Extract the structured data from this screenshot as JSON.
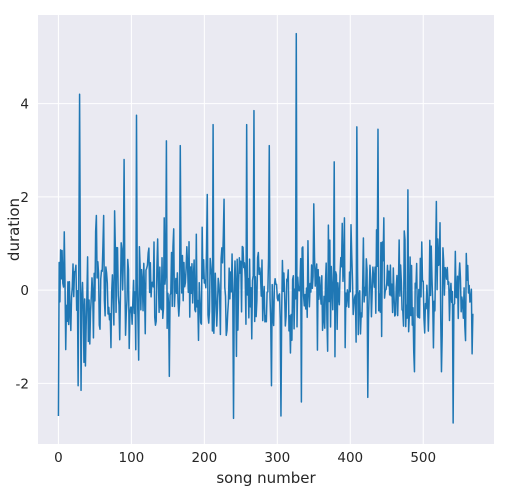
{
  "chart_data": {
    "type": "line",
    "title": "",
    "xlabel": "song number",
    "ylabel": "duration",
    "xlim": [
      -28,
      597
    ],
    "ylim": [
      -3.3,
      5.9
    ],
    "xticks": [
      0,
      100,
      200,
      300,
      400,
      500
    ],
    "yticks": [
      -2,
      0,
      2,
      4
    ],
    "xtick_labels": [
      "0",
      "100",
      "200",
      "300",
      "400",
      "500"
    ],
    "ytick_labels": [
      "-2",
      "0",
      "2",
      "4"
    ],
    "grid": true,
    "legend": "none",
    "colors": {
      "background": "#eaeaf2",
      "grid": "#ffffff",
      "line": "#1f77b4",
      "text": "#262626"
    },
    "series": [
      {
        "n_points": 569,
        "y_range": [
          -2.85,
          5.5
        ],
        "peaks": [
          {
            "x": 0,
            "y": -2.7
          },
          {
            "x": 5,
            "y": 0.85
          },
          {
            "x": 8,
            "y": 1.25
          },
          {
            "x": 27,
            "y": -2.05
          },
          {
            "x": 29,
            "y": 4.2
          },
          {
            "x": 31,
            "y": -2.15
          },
          {
            "x": 35,
            "y": -1.55
          },
          {
            "x": 52,
            "y": 1.6
          },
          {
            "x": 62,
            "y": 1.6
          },
          {
            "x": 77,
            "y": 1.7
          },
          {
            "x": 90,
            "y": 2.8
          },
          {
            "x": 107,
            "y": 3.75
          },
          {
            "x": 110,
            "y": -1.5
          },
          {
            "x": 148,
            "y": 3.2
          },
          {
            "x": 152,
            "y": -1.85
          },
          {
            "x": 167,
            "y": 3.1
          },
          {
            "x": 204,
            "y": 2.05
          },
          {
            "x": 212,
            "y": 3.55
          },
          {
            "x": 227,
            "y": 1.95
          },
          {
            "x": 240,
            "y": -2.75
          },
          {
            "x": 258,
            "y": 3.55
          },
          {
            "x": 268,
            "y": 3.85
          },
          {
            "x": 289,
            "y": 3.1
          },
          {
            "x": 292,
            "y": -2.05
          },
          {
            "x": 305,
            "y": -2.7
          },
          {
            "x": 326,
            "y": 5.5
          },
          {
            "x": 333,
            "y": -2.4
          },
          {
            "x": 350,
            "y": 1.85
          },
          {
            "x": 378,
            "y": 2.75
          },
          {
            "x": 409,
            "y": 3.5
          },
          {
            "x": 424,
            "y": -2.3
          },
          {
            "x": 438,
            "y": 3.45
          },
          {
            "x": 479,
            "y": 2.15
          },
          {
            "x": 518,
            "y": 1.9
          },
          {
            "x": 541,
            "y": -2.85
          },
          {
            "x": 569,
            "y": -1.9
          }
        ],
        "noise_sd": 0.62
      }
    ]
  }
}
